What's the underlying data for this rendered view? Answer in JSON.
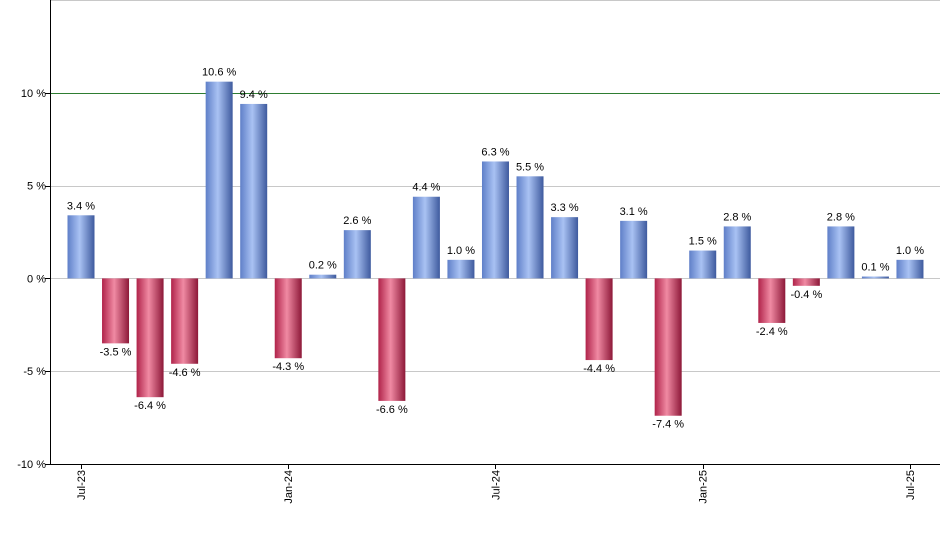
{
  "chart_data": {
    "type": "bar",
    "title": "",
    "xlabel": "",
    "ylabel": "",
    "ylim": [
      -10,
      15
    ],
    "y_ticks": [
      -10,
      -5,
      0,
      5,
      10
    ],
    "y_tick_labels": [
      "-10 %",
      "-5 %",
      "0 %",
      "5 %",
      "10 %"
    ],
    "grid": true,
    "reference_line": {
      "value": 10,
      "color": "#2e7d32"
    },
    "x_tick_labels": [
      {
        "label": "Jul-23",
        "index": 0
      },
      {
        "label": "Jan-24",
        "index": 6
      },
      {
        "label": "Jul-24",
        "index": 12
      },
      {
        "label": "Jan-25",
        "index": 18
      },
      {
        "label": "Jul-25",
        "index": 24
      }
    ],
    "values": [
      3.4,
      -3.5,
      -6.4,
      -4.6,
      10.6,
      9.4,
      -4.3,
      0.2,
      2.6,
      -6.6,
      4.4,
      1.0,
      6.3,
      5.5,
      3.3,
      -4.4,
      3.1,
      -7.4,
      1.5,
      2.8,
      -2.4,
      -0.4,
      2.8,
      0.1,
      1.0
    ],
    "data_labels": [
      "3.4 %",
      "-3.5 %",
      "-6.4 %",
      "-4.6 %",
      "10.6 %",
      "9.4 %",
      "-4.3 %",
      "0.2 %",
      "2.6 %",
      "-6.6 %",
      "4.4 %",
      "1.0 %",
      "6.3 %",
      "5.5 %",
      "3.3 %",
      "-4.4 %",
      "3.1 %",
      "-7.4 %",
      "1.5 %",
      "2.8 %",
      "-2.4 %",
      "-0.4 %",
      "2.8 %",
      "0.1 %",
      "1.0 %"
    ],
    "colors": {
      "positive": "#6f93e0",
      "negative": "#c8345a",
      "grid": "#c8c8c8",
      "axis": "#000000"
    }
  }
}
